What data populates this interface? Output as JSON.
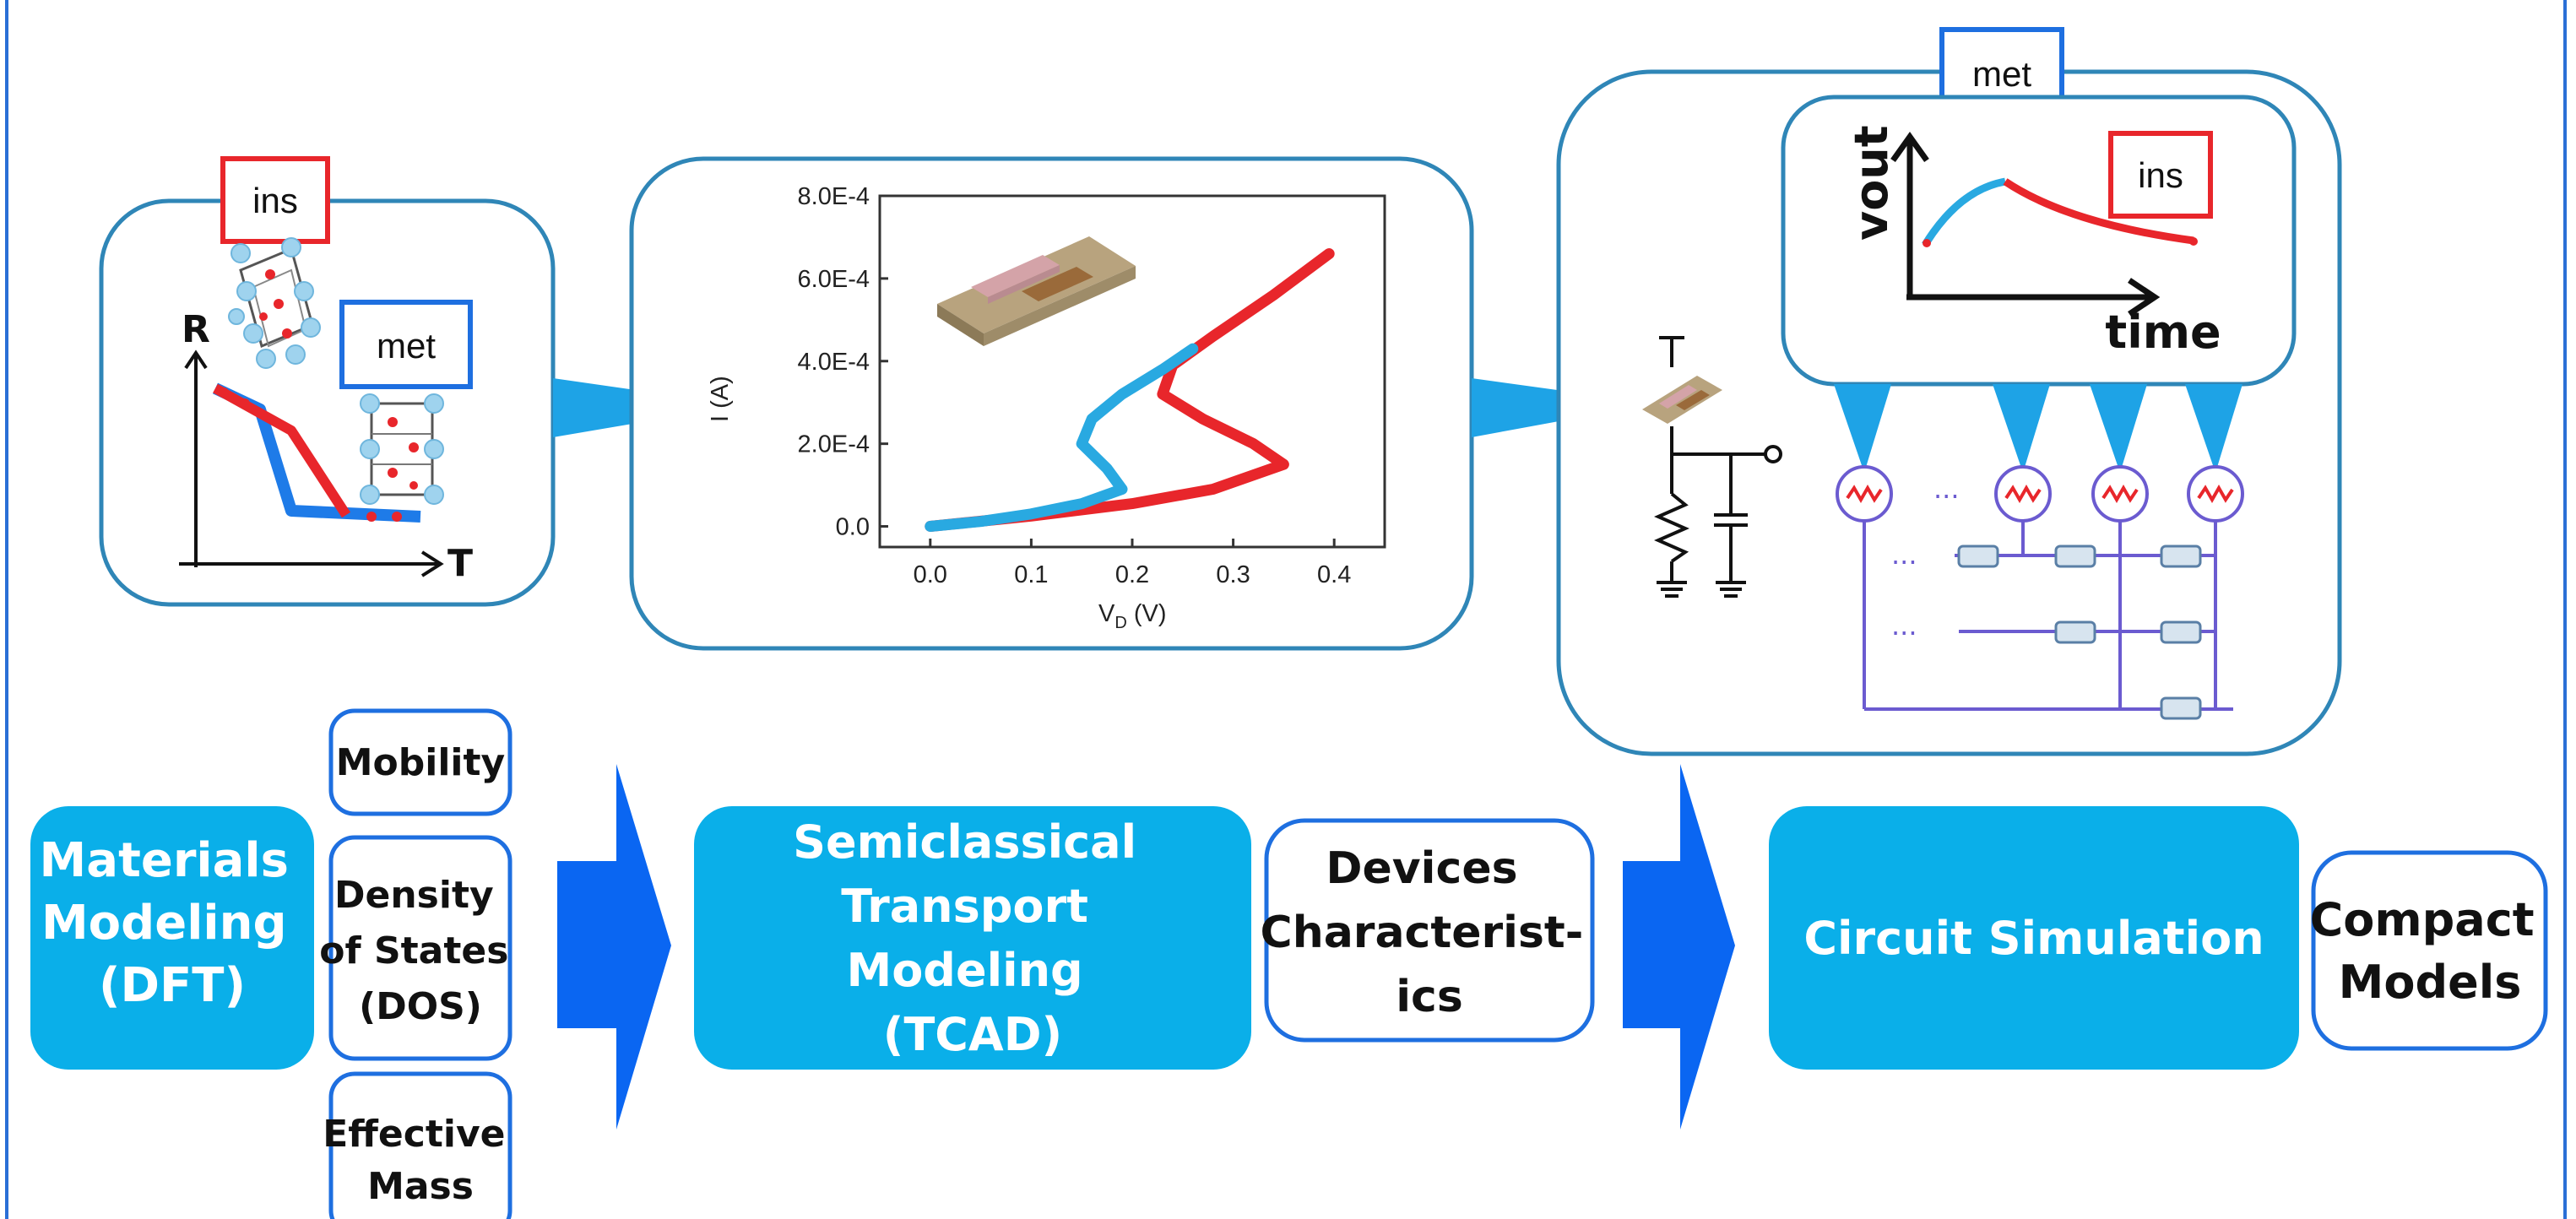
{
  "materials_panel": {
    "ins_tag": "ins",
    "met_tag": "met",
    "axis_y": "R",
    "axis_x": "T"
  },
  "iv_chart": {
    "chart_data": {
      "type": "line",
      "xlabel": "V",
      "xlabel_sub": "D",
      "xlabel_unit": "(V)",
      "ylabel": "I (A)",
      "x_ticks": [
        "0.0",
        "0.1",
        "0.2",
        "0.3",
        "0.4"
      ],
      "y_ticks": [
        "0.0",
        "2.0E-4",
        "4.0E-4",
        "6.0E-4",
        "8.0E-4"
      ],
      "xlim": [
        -0.05,
        0.45
      ],
      "ylim": [
        -5e-05,
        0.0008
      ],
      "series": [
        {
          "color": "#29a9e1",
          "points": [
            [
              0.0,
              0.0
            ],
            [
              0.05,
              1.2e-05
            ],
            [
              0.1,
              3e-05
            ],
            [
              0.15,
              5.5e-05
            ],
            [
              0.19,
              9e-05
            ],
            [
              0.175,
              0.00014
            ],
            [
              0.15,
              0.0002
            ],
            [
              0.16,
              0.00026
            ],
            [
              0.19,
              0.00032
            ],
            [
              0.23,
              0.00038
            ],
            [
              0.26,
              0.00043
            ]
          ]
        },
        {
          "color": "#e8262b",
          "points": [
            [
              0.0,
              0.0
            ],
            [
              0.1,
              2.5e-05
            ],
            [
              0.2,
              5.5e-05
            ],
            [
              0.28,
              9e-05
            ],
            [
              0.35,
              0.00015
            ],
            [
              0.32,
              0.0002
            ],
            [
              0.27,
              0.00026
            ],
            [
              0.23,
              0.00032
            ],
            [
              0.24,
              0.00039
            ],
            [
              0.28,
              0.00046
            ],
            [
              0.34,
              0.00056
            ],
            [
              0.395,
              0.00066
            ]
          ]
        }
      ]
    }
  },
  "circuit_panel": {
    "met_tag": "met",
    "ins_tag": "ins",
    "vout_label": "vout",
    "time_label": "time",
    "dots": "..."
  },
  "flow": {
    "materials_modeling": [
      "Materials",
      "Modeling",
      "(DFT)"
    ],
    "mobility": "Mobility",
    "dos": [
      "Density",
      "of States",
      "(DOS)"
    ],
    "effective_mass": [
      "Effective",
      "Mass"
    ],
    "semiclassical": [
      "Semiclassical",
      "Transport",
      "Modeling",
      "(TCAD)"
    ],
    "devices": [
      "Devices",
      "Characterist-",
      "ics"
    ],
    "circuit_simulation": "Circuit Simulation",
    "compact_models": [
      "Compact",
      "Models"
    ]
  },
  "colors": {
    "frame": "#2a6fd6",
    "panel_border": "#2f86b7",
    "cyan_box": "#0aafe9",
    "blue_box_border": "#1e6fe0",
    "big_arrow": "#0a66f2",
    "pointer": "#1ea3e6",
    "red": "#e8262b",
    "blue_line": "#1e7be8",
    "purple": "#6b5bd0"
  }
}
